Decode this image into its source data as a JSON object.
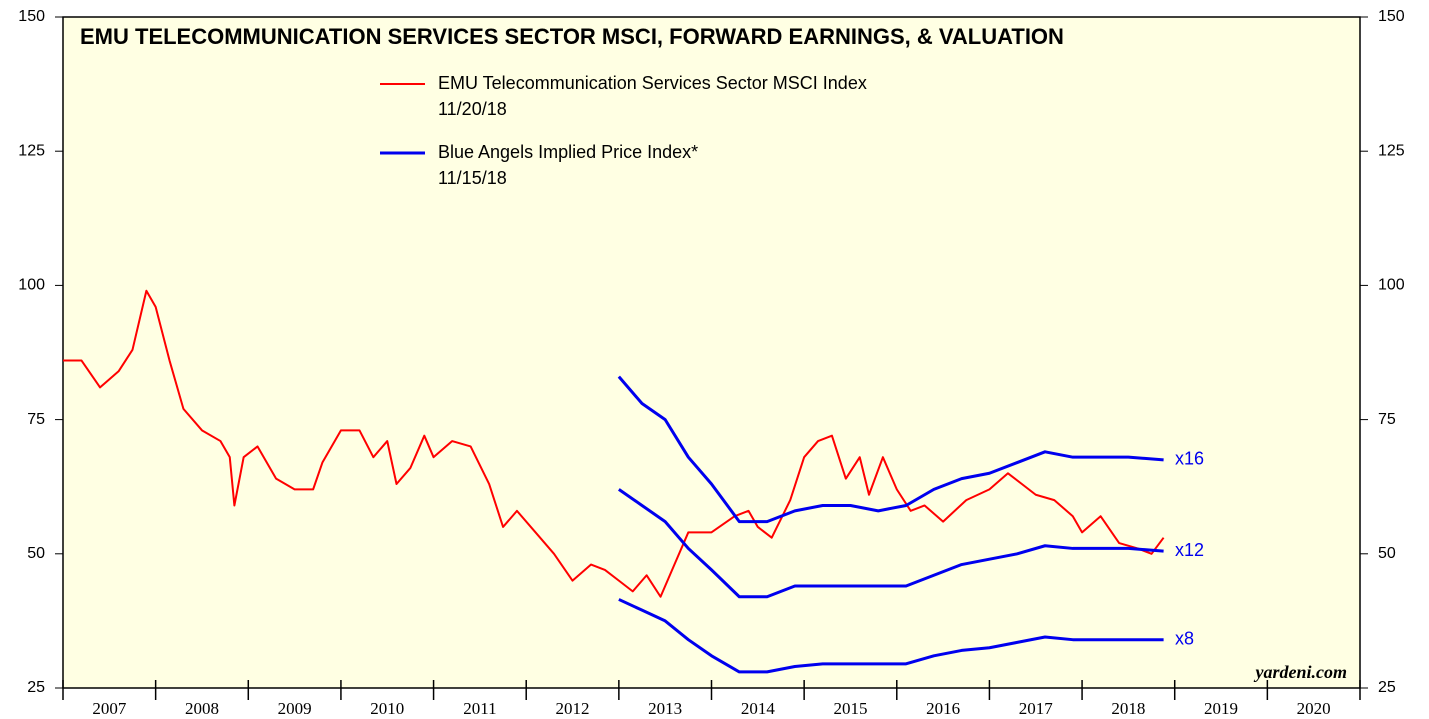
{
  "chart_data": {
    "type": "line",
    "title": "EMU TELECOMMUNICATION SERVICES SECTOR MSCI, FORWARD EARNINGS, & VALUATION",
    "legend": [
      {
        "name": "EMU Telecommunication Services Sector MSCI Index",
        "date": "11/20/18",
        "color": "#ff0000"
      },
      {
        "name": "Blue Angels Implied Price Index*",
        "date": "11/15/18",
        "color": "#0000ee"
      }
    ],
    "watermark": "yardeni.com",
    "categories": [
      "2007",
      "2008",
      "2009",
      "2010",
      "2011",
      "2012",
      "2013",
      "2014",
      "2015",
      "2016",
      "2017",
      "2018",
      "2019",
      "2020"
    ],
    "xlim": [
      2007,
      2021
    ],
    "xticks": [
      2007,
      2008,
      2009,
      2010,
      2011,
      2012,
      2013,
      2014,
      2015,
      2016,
      2017,
      2018,
      2019,
      2020,
      2021
    ],
    "ylim": [
      25,
      150
    ],
    "yticks": [
      25,
      50,
      75,
      100,
      125,
      150
    ],
    "series": [
      {
        "color": "#ff0000",
        "width": 2,
        "x": [
          2007.0,
          2007.2,
          2007.4,
          2007.6,
          2007.75,
          2007.9,
          2008.0,
          2008.15,
          2008.3,
          2008.5,
          2008.7,
          2008.8,
          2008.85,
          2008.95,
          2009.1,
          2009.3,
          2009.5,
          2009.7,
          2009.8,
          2010.0,
          2010.2,
          2010.35,
          2010.5,
          2010.6,
          2010.75,
          2010.9,
          2011.0,
          2011.2,
          2011.4,
          2011.6,
          2011.75,
          2011.9,
          2012.1,
          2012.3,
          2012.5,
          2012.7,
          2012.85,
          2013.0,
          2013.15,
          2013.3,
          2013.45,
          2013.6,
          2013.75,
          2014.0,
          2014.25,
          2014.4,
          2014.5,
          2014.65,
          2014.85,
          2015.0,
          2015.15,
          2015.3,
          2015.45,
          2015.6,
          2015.7,
          2015.85,
          2016.0,
          2016.15,
          2016.3,
          2016.5,
          2016.75,
          2017.0,
          2017.2,
          2017.35,
          2017.5,
          2017.7,
          2017.9,
          2018.0,
          2018.2,
          2018.4,
          2018.6,
          2018.75,
          2018.88
        ],
        "values": [
          86,
          86,
          81,
          84,
          88,
          99,
          96,
          86,
          77,
          73,
          71,
          68,
          59,
          68,
          70,
          64,
          62,
          62,
          67,
          73,
          73,
          68,
          71,
          63,
          66,
          72,
          68,
          71,
          70,
          63,
          55,
          58,
          54,
          50,
          45,
          48,
          47,
          45,
          43,
          46,
          42,
          48,
          54,
          54,
          57,
          58,
          55,
          53,
          60,
          68,
          71,
          72,
          64,
          68,
          61,
          68,
          62,
          58,
          59,
          56,
          60,
          62,
          65,
          63,
          61,
          60,
          57,
          54,
          57,
          52,
          51,
          50,
          53
        ]
      },
      {
        "label": "x16",
        "color": "#0000ee",
        "width": 3,
        "x": [
          2013.0,
          2013.25,
          2013.5,
          2013.75,
          2014.0,
          2014.3,
          2014.6,
          2014.9,
          2015.2,
          2015.5,
          2015.8,
          2016.1,
          2016.4,
          2016.7,
          2017.0,
          2017.3,
          2017.6,
          2017.9,
          2018.2,
          2018.5,
          2018.88
        ],
        "values": [
          83,
          78,
          75,
          68,
          63,
          56,
          56,
          58,
          59,
          59,
          58,
          59,
          62,
          64,
          65,
          67,
          69,
          68,
          68,
          68,
          67.5
        ]
      },
      {
        "label": "x12",
        "color": "#0000ee",
        "width": 3,
        "x": [
          2013.0,
          2013.25,
          2013.5,
          2013.75,
          2014.0,
          2014.3,
          2014.6,
          2014.9,
          2015.2,
          2015.5,
          2015.8,
          2016.1,
          2016.4,
          2016.7,
          2017.0,
          2017.3,
          2017.6,
          2017.9,
          2018.2,
          2018.5,
          2018.88
        ],
        "values": [
          62,
          59,
          56,
          51,
          47,
          42,
          42,
          44,
          44,
          44,
          44,
          44,
          46,
          48,
          49,
          50,
          51.5,
          51,
          51,
          51,
          50.5
        ]
      },
      {
        "label": "x8",
        "color": "#0000ee",
        "width": 3,
        "x": [
          2013.0,
          2013.25,
          2013.5,
          2013.75,
          2014.0,
          2014.3,
          2014.6,
          2014.9,
          2015.2,
          2015.5,
          2015.8,
          2016.1,
          2016.4,
          2016.7,
          2017.0,
          2017.3,
          2017.6,
          2017.9,
          2018.2,
          2018.5,
          2018.88
        ],
        "values": [
          41.5,
          39.5,
          37.5,
          34,
          31,
          28,
          28,
          29,
          29.5,
          29.5,
          29.5,
          29.5,
          31,
          32,
          32.5,
          33.5,
          34.5,
          34,
          34,
          34,
          34
        ]
      }
    ]
  }
}
